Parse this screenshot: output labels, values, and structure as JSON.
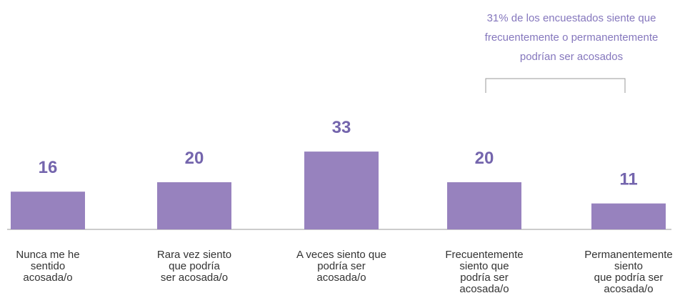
{
  "chart_data": {
    "type": "bar",
    "annotation": "31% de los encuestados siente que\nfrecuentemente o permanentemente\npodrían ser acosados",
    "categories": [
      "Nunca me he\nsentido\nacosada/o",
      "Rara vez siento\nque podría\nser acosada/o",
      "A veces siento que\npodría ser\nacosada/o",
      "Frecuentemente\nsiento que\npodría ser\nacosada/o",
      "Permanentemente\nsiento\nque podría ser\nacosada/o"
    ],
    "values": [
      16,
      20,
      33,
      20,
      11
    ],
    "color": "#9782be"
  }
}
